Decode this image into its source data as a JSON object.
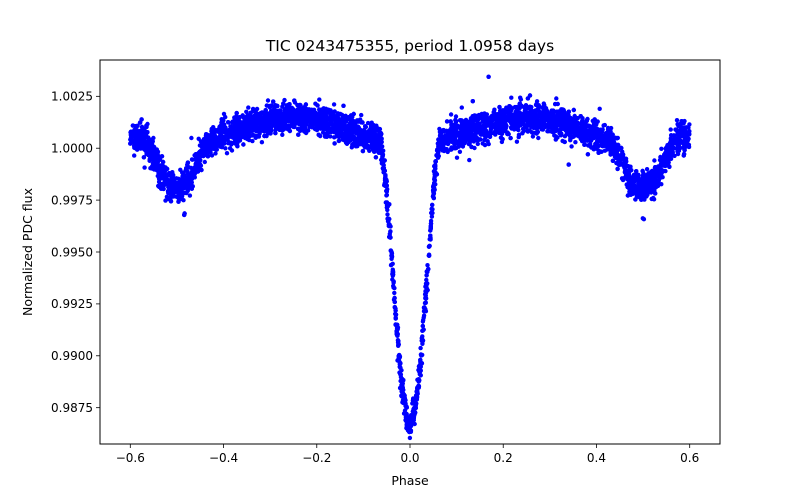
{
  "chart_data": {
    "type": "scatter",
    "title": "TIC 0243475355, period 1.0958 days",
    "xlabel": "Phase",
    "ylabel": "Normalized PDC flux",
    "xlim": [
      -0.665,
      0.665
    ],
    "ylim": [
      0.98575,
      1.00425
    ],
    "xticks": [
      -0.6,
      -0.4,
      -0.2,
      0.0,
      0.2,
      0.4,
      0.6
    ],
    "xtick_labels": [
      "−0.6",
      "−0.4",
      "−0.2",
      "0.0",
      "0.2",
      "0.4",
      "0.6"
    ],
    "yticks": [
      0.9875,
      0.99,
      0.9925,
      0.995,
      0.9975,
      1.0,
      1.0025
    ],
    "ytick_labels": [
      "0.9875",
      "0.9900",
      "0.9925",
      "0.9950",
      "0.9975",
      "1.0000",
      "1.0025"
    ],
    "grid": false,
    "marker_color": "#0000ff",
    "series": [
      {
        "name": "PDC flux",
        "phase_range": [
          -0.6,
          0.6
        ],
        "baseline_flux": 1.0,
        "out_of_eclipse_peak_flux": 1.0015,
        "primary_eclipse": {
          "phase": 0.0,
          "depth_flux": 0.9866,
          "half_width_phase": 0.065
        },
        "secondary_eclipse": {
          "phase": 0.5,
          "depth_flux": 0.9979,
          "half_width_phase": 0.075
        },
        "secondary_eclipse_mirror": {
          "phase": -0.5,
          "depth_flux": 0.9979,
          "half_width_phase": 0.075
        },
        "scatter_sigma_flux": 0.00035,
        "n_points": 6000
      }
    ]
  }
}
